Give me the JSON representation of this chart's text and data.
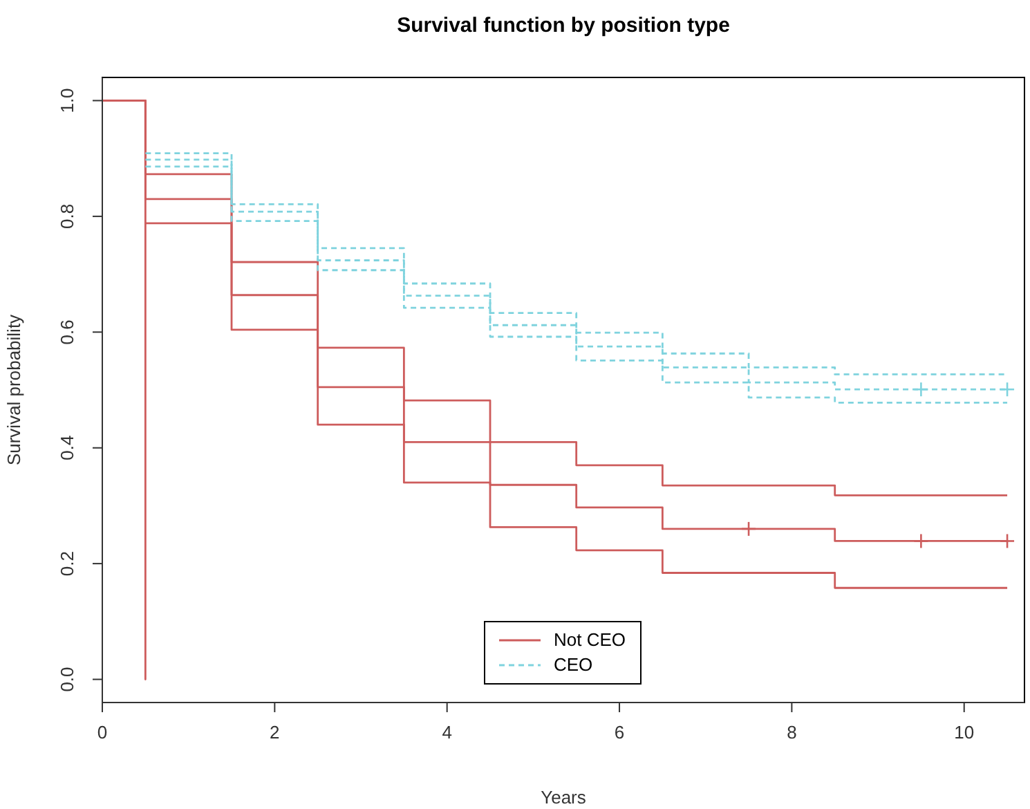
{
  "chart_data": {
    "type": "step",
    "title": "Survival function by position type",
    "xlabel": "Years",
    "ylabel": "Survival probability",
    "xlim": [
      0,
      10.7
    ],
    "xticks": [
      0,
      2,
      4,
      6,
      8,
      10
    ],
    "ylim": [
      -0.04,
      1.04
    ],
    "yticks": [
      {
        "value": 0,
        "label": "0.0"
      },
      {
        "value": 0.2,
        "label": "0.2"
      },
      {
        "value": 0.4,
        "label": "0.4"
      },
      {
        "value": 0.6,
        "label": "0.6"
      },
      {
        "value": 0.8,
        "label": "0.8"
      },
      {
        "value": 1,
        "label": "1.0"
      }
    ],
    "grid": false,
    "legend": "bottom",
    "series": [
      {
        "name": "Not CEO",
        "color": "#cd5c5c",
        "line_style": "solid",
        "x": [
          0,
          0.5,
          1.5,
          2.5,
          3.5,
          4.5,
          5.5,
          6.5,
          8.5,
          10.5
        ],
        "values": [
          1,
          0.83,
          0.664,
          0.505,
          0.41,
          0.336,
          0.297,
          0.26,
          0.239,
          0.239
        ]
      },
      {
        "color": "#cd5c5c",
        "line_style": "solid",
        "x": [
          0,
          0.5,
          1.5,
          2.5,
          3.5,
          4.5,
          5.5,
          6.5,
          8.5,
          10.5
        ],
        "values": [
          1,
          0.873,
          0.721,
          0.573,
          0.482,
          0.41,
          0.37,
          0.335,
          0.318,
          0.318
        ]
      },
      {
        "color": "#cd5c5c",
        "line_style": "solid",
        "x": [
          0,
          0.5,
          0.5,
          1.5,
          2.5,
          3.5,
          4.5,
          5.5,
          6.5,
          8.5,
          10.5
        ],
        "values": [
          1,
          0,
          0.788,
          0.604,
          0.44,
          0.34,
          0.263,
          0.223,
          0.184,
          0.158,
          0.158
        ]
      },
      {
        "color": "#cd5c5c",
        "type": "scatter",
        "marker": "cross",
        "x": [
          7.5,
          9.5,
          10.5
        ],
        "values": [
          0.26,
          0.239,
          0.239
        ]
      },
      {
        "name": "CEO",
        "color": "#7fd3de",
        "line_style": "dashed",
        "x": [
          0.5,
          1.5,
          2.5,
          3.5,
          4.5,
          5.5,
          6.5,
          7.5,
          8.5,
          10.5
        ],
        "values": [
          0.898,
          0.808,
          0.724,
          0.663,
          0.612,
          0.575,
          0.539,
          0.513,
          0.501,
          0.501
        ]
      },
      {
        "color": "#7fd3de",
        "line_style": "dashed",
        "x": [
          0.5,
          1.5,
          2.5,
          3.5,
          4.5,
          5.5,
          6.5,
          7.5,
          8.5,
          10.5
        ],
        "values": [
          0.909,
          0.821,
          0.745,
          0.684,
          0.633,
          0.599,
          0.563,
          0.539,
          0.527,
          0.527
        ]
      },
      {
        "color": "#7fd3de",
        "line_style": "dashed",
        "x": [
          0.5,
          1.5,
          2.5,
          3.5,
          4.5,
          5.5,
          6.5,
          7.5,
          8.5,
          10.5
        ],
        "values": [
          0.886,
          0.792,
          0.707,
          0.642,
          0.592,
          0.551,
          0.513,
          0.487,
          0.478,
          0.478
        ]
      },
      {
        "color": "#7fd3de",
        "type": "scatter",
        "marker": "cross",
        "x": [
          9.5,
          10.5
        ],
        "values": [
          0.501,
          0.501
        ]
      }
    ]
  }
}
